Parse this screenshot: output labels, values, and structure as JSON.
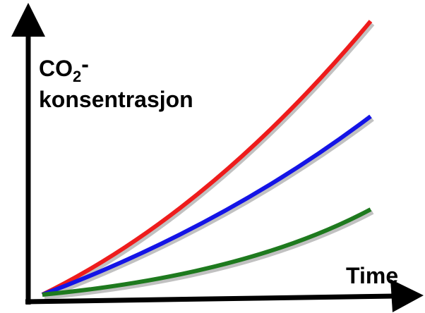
{
  "y_label": {
    "main": "CO",
    "subscript": "2",
    "suffix": "-",
    "line2": "konsentrasjon"
  },
  "x_label": "Time"
}
